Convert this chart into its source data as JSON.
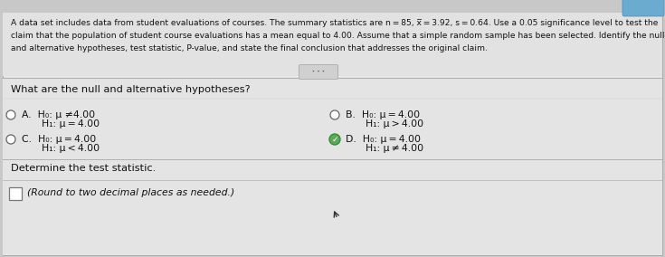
{
  "bg_top": "#4a8dbf",
  "bg_main": "#c8c8c8",
  "bg_content": "#e8e8e8",
  "bg_header": "#e0e0e0",
  "bg_lower": "#dcdcdc",
  "text_color": "#111111",
  "header_line1": "A data set includes data from student evaluations of courses. The summary statistics are n = 85, x̅ = 3.92, s = 0.64. Use a 0.05 significance level to test the",
  "header_line2": "claim that the population of student course evaluations has a mean equal to 4.00. Assume that a simple random sample has been selected. Identify the null",
  "header_line3": "and alternative hypotheses, test statistic, P-value, and state the final conclusion that addresses the original claim.",
  "question": "What are the null and alternative hypotheses?",
  "optA_line1": "A.  H₀: μ ≠4.00",
  "optA_line2": "    H₁: μ = 4.00",
  "optB_line1": "B.  H₀: μ = 4.00",
  "optB_line2": "    H₁: μ > 4.00",
  "optC_line1": "C.  H₀: μ = 4.00",
  "optC_line2": "    H₁: μ < 4.00",
  "optD_line1": "D.  H₀: μ = 4.00",
  "optD_line2": "    H₁: μ ≠ 4.00",
  "bottom_line1": "Determine the test statistic.",
  "bottom_line2": "(Round to two decimal places as needed.)",
  "dots_label": "· · ·",
  "selected_option": "D",
  "divider_color": "#b0b0b0",
  "circle_edge": "#666666",
  "check_fill": "#5aaa5a",
  "check_edge": "#3a8a3a"
}
